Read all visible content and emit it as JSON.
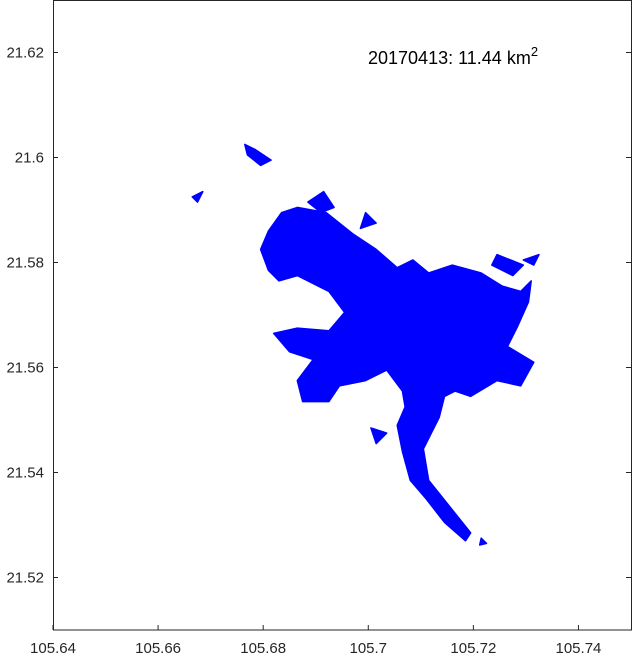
{
  "chart_data": {
    "type": "map",
    "annotation": {
      "date": "20170413",
      "area_value": "11.44",
      "area_unit": "km",
      "area_unit_exponent": "2"
    },
    "xlim": [
      105.64,
      105.75
    ],
    "ylim": [
      21.51,
      21.63
    ],
    "x_ticks": [
      "105.64",
      "105.66",
      "105.68",
      "105.7",
      "105.72",
      "105.74"
    ],
    "y_ticks": [
      "21.52",
      "21.54",
      "21.56",
      "21.58",
      "21.6",
      "21.62"
    ],
    "grid": false,
    "water_color": "#0000FF",
    "water_outline_lonlat": [
      [
        105.681,
        21.586
      ],
      [
        105.6835,
        21.5895
      ],
      [
        105.6865,
        21.5905
      ],
      [
        105.692,
        21.5895
      ],
      [
        105.697,
        21.5855
      ],
      [
        105.7015,
        21.5825
      ],
      [
        105.7055,
        21.579
      ],
      [
        105.7085,
        21.5805
      ],
      [
        105.7115,
        21.578
      ],
      [
        105.716,
        21.5795
      ],
      [
        105.7215,
        21.578
      ],
      [
        105.7255,
        21.5755
      ],
      [
        105.729,
        21.5745
      ],
      [
        105.731,
        21.5765
      ],
      [
        105.7305,
        21.5725
      ],
      [
        105.7285,
        21.568
      ],
      [
        105.7265,
        21.564
      ],
      [
        105.7315,
        21.561
      ],
      [
        105.729,
        21.5565
      ],
      [
        105.7245,
        21.5575
      ],
      [
        105.7195,
        21.5545
      ],
      [
        105.7165,
        21.5555
      ],
      [
        105.7145,
        21.5545
      ],
      [
        105.7135,
        21.5505
      ],
      [
        105.7105,
        21.5445
      ],
      [
        105.7115,
        21.5385
      ],
      [
        105.7155,
        21.5335
      ],
      [
        105.7195,
        21.5285
      ],
      [
        105.7185,
        21.527
      ],
      [
        105.7145,
        21.5305
      ],
      [
        105.711,
        21.535
      ],
      [
        105.708,
        21.5385
      ],
      [
        105.7065,
        21.544
      ],
      [
        105.7055,
        21.549
      ],
      [
        105.707,
        21.5525
      ],
      [
        105.7065,
        21.5555
      ],
      [
        105.7035,
        21.5595
      ],
      [
        105.6995,
        21.5575
      ],
      [
        105.6945,
        21.5565
      ],
      [
        105.6925,
        21.5535
      ],
      [
        105.6875,
        21.5535
      ],
      [
        105.6865,
        21.5575
      ],
      [
        105.6895,
        21.5615
      ],
      [
        105.685,
        21.563
      ],
      [
        105.682,
        21.5665
      ],
      [
        105.6865,
        21.5675
      ],
      [
        105.6925,
        21.567
      ],
      [
        105.6955,
        21.5705
      ],
      [
        105.6925,
        21.5745
      ],
      [
        105.6865,
        21.5775
      ],
      [
        105.683,
        21.5765
      ],
      [
        105.681,
        21.5785
      ],
      [
        105.6795,
        21.5825
      ]
    ],
    "water_fragments_lonlat": [
      [
        [
          105.6765,
          21.6025
        ],
        [
          105.6785,
          21.6015
        ],
        [
          105.6815,
          21.5995
        ],
        [
          105.6795,
          21.5985
        ],
        [
          105.677,
          21.6005
        ]
      ],
      [
        [
          105.6885,
          21.5915
        ],
        [
          105.6915,
          21.5935
        ],
        [
          105.6935,
          21.5905
        ],
        [
          105.691,
          21.5895
        ]
      ],
      [
        [
          105.6995,
          21.5895
        ],
        [
          105.7015,
          21.5875
        ],
        [
          105.6985,
          21.5865
        ]
      ],
      [
        [
          105.7245,
          21.5815
        ],
        [
          105.7295,
          21.5795
        ],
        [
          105.7275,
          21.5775
        ],
        [
          105.7235,
          21.5795
        ]
      ],
      [
        [
          105.7295,
          21.5805
        ],
        [
          105.7325,
          21.5815
        ],
        [
          105.7315,
          21.5795
        ]
      ],
      [
        [
          105.6665,
          21.5925
        ],
        [
          105.6685,
          21.5935
        ],
        [
          105.6675,
          21.5915
        ]
      ],
      [
        [
          105.7215,
          21.5275
        ],
        [
          105.7225,
          21.5265
        ],
        [
          105.7212,
          21.5262
        ]
      ],
      [
        [
          105.7005,
          21.5485
        ],
        [
          105.7035,
          21.5475
        ],
        [
          105.7015,
          21.5455
        ]
      ]
    ]
  }
}
